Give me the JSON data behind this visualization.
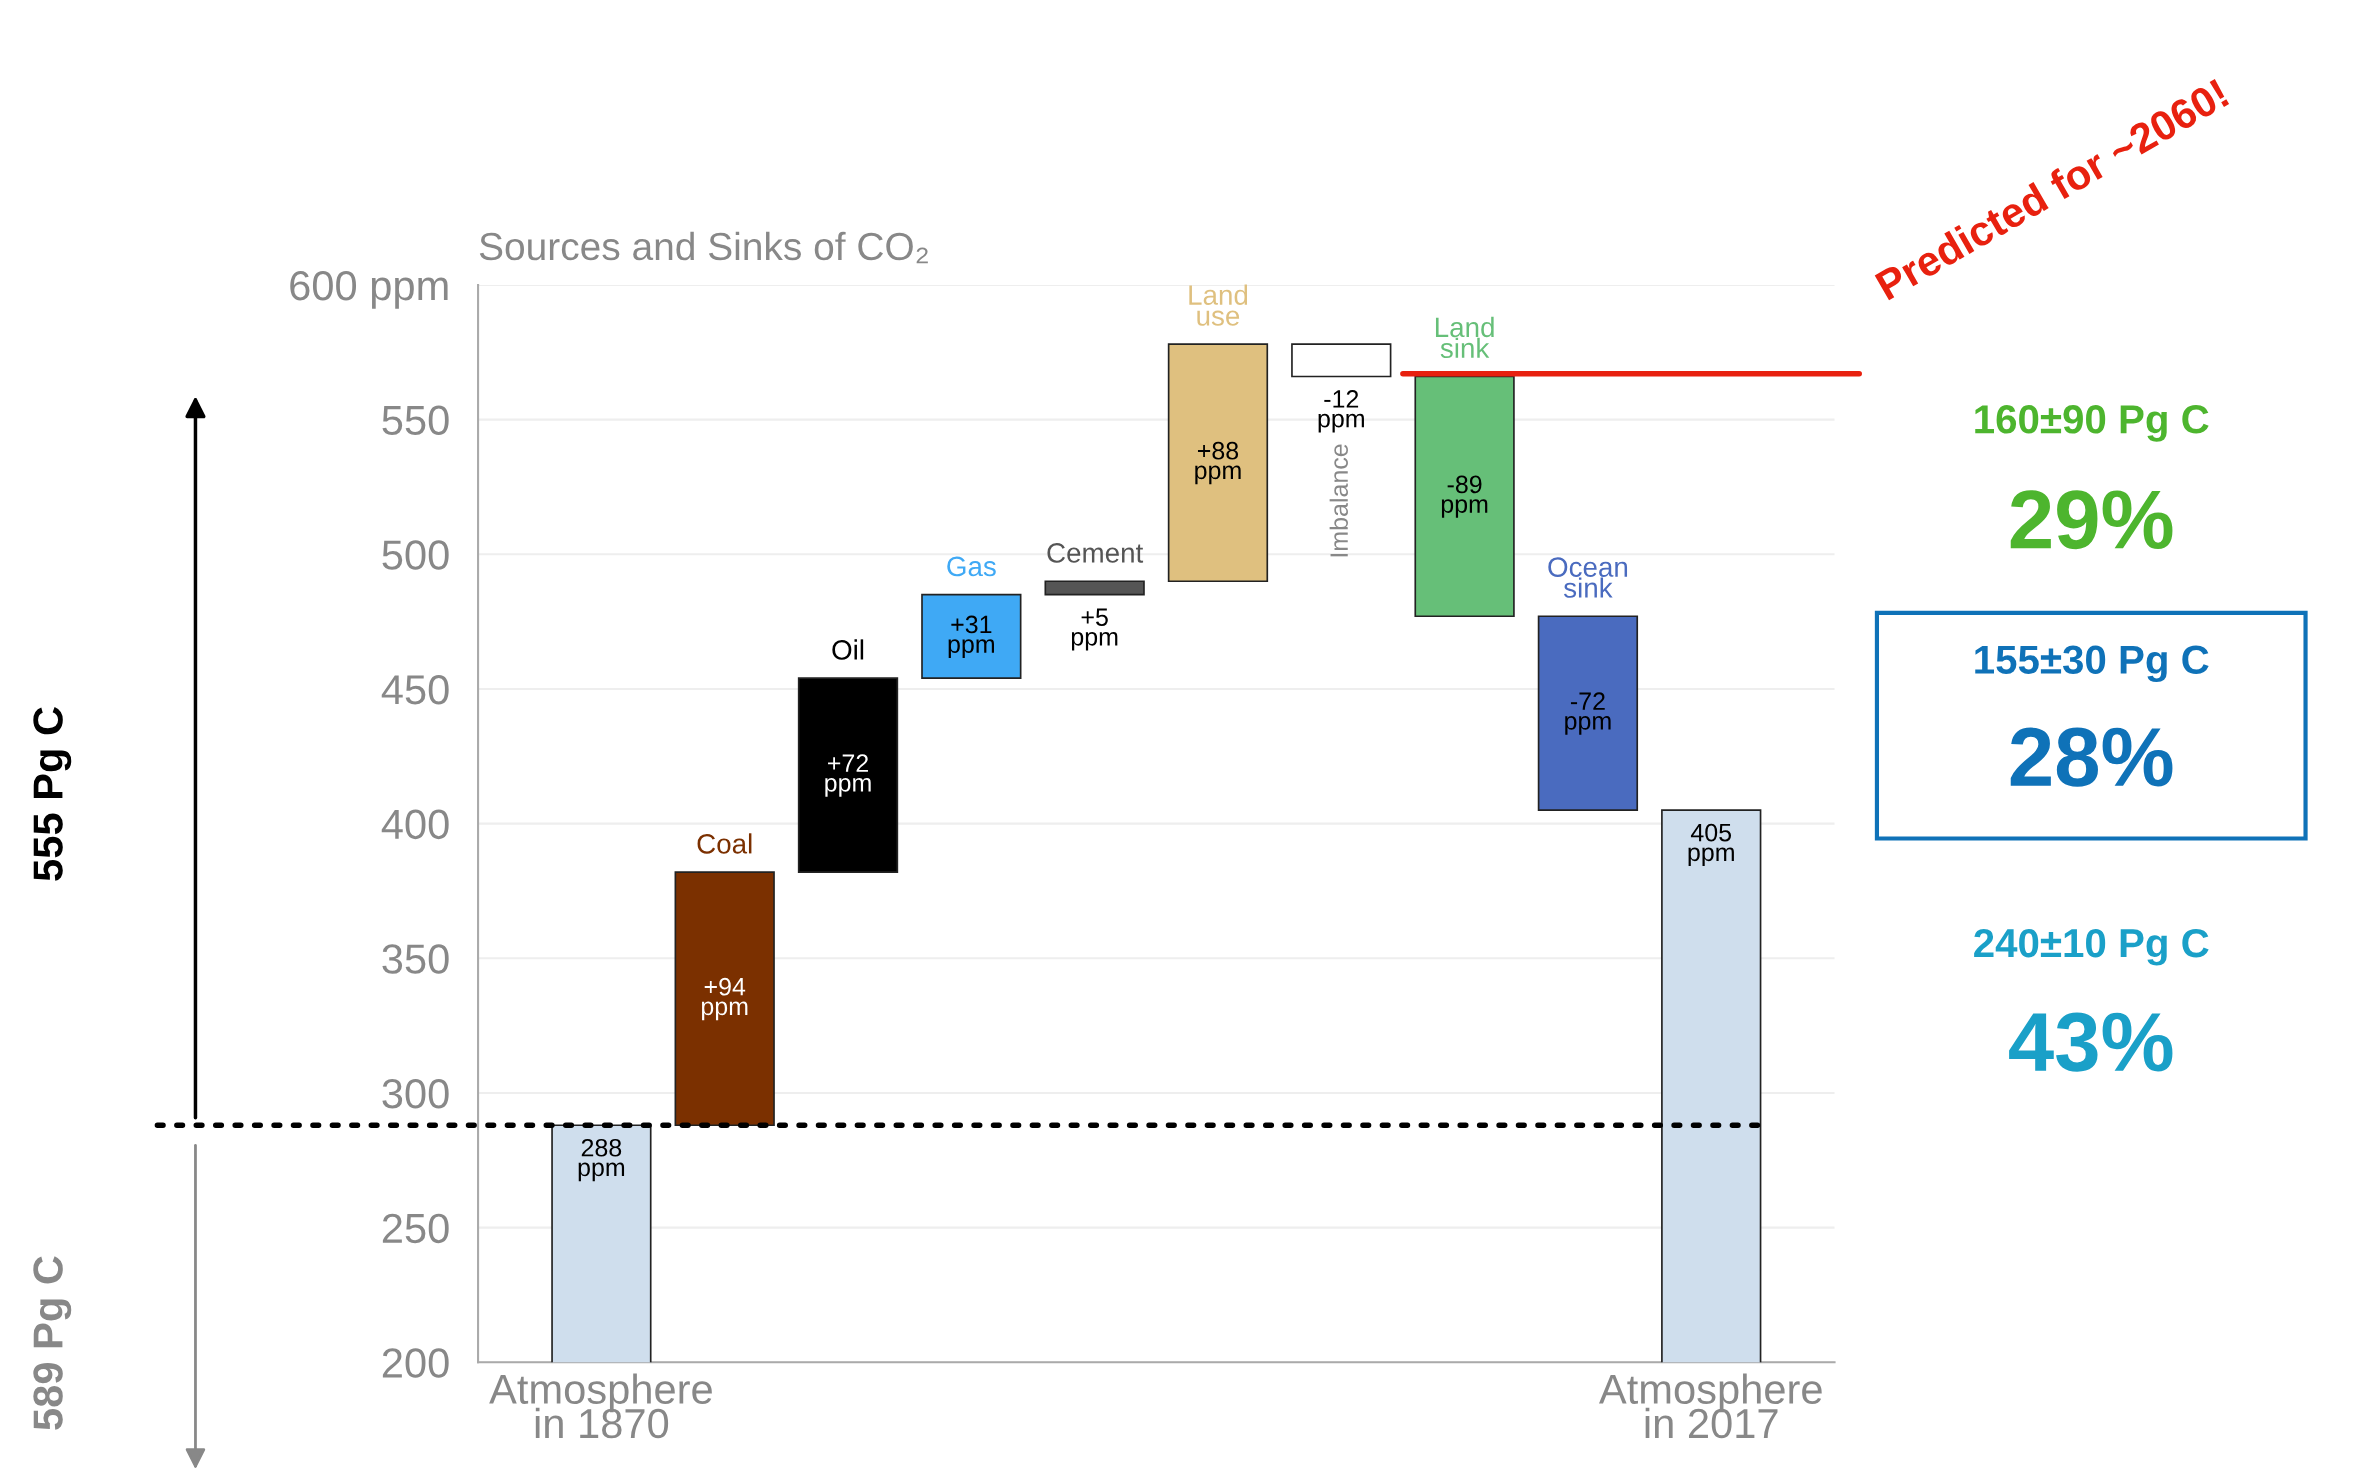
{
  "chart_data": {
    "type": "bar",
    "title": "Sources and Sinks of CO₂",
    "categories": [
      "Atmosphere in 1870",
      null,
      null,
      null,
      null,
      null,
      null,
      null,
      null,
      "Atmosphere in 2017"
    ],
    "series": [
      {
        "color": "#cfdeed",
        "values": [
          288,
          null,
          null,
          null,
          null,
          null,
          null,
          null,
          null,
          405
        ],
        "value_labels": [
          "288 ppm",
          null,
          null,
          null,
          null,
          null,
          null,
          null,
          null,
          "405 ppm"
        ]
      },
      {
        "name": "Coal",
        "color": "#7b3000",
        "base": [
          null,
          288,
          null,
          null,
          null,
          null,
          null,
          null,
          null,
          null
        ],
        "values": [
          null,
          94,
          null,
          null,
          null,
          null,
          null,
          null,
          null,
          null
        ],
        "value_labels": [
          null,
          "+94 ppm",
          null,
          null,
          null,
          null,
          null,
          null,
          null,
          null
        ]
      },
      {
        "name": "Oil",
        "color": "#000000",
        "base": [
          null,
          null,
          382,
          null,
          null,
          null,
          null,
          null,
          null,
          null
        ],
        "values": [
          null,
          null,
          72,
          null,
          null,
          null,
          null,
          null,
          null,
          null
        ],
        "value_labels": [
          null,
          null,
          "+72 ppm",
          null,
          null,
          null,
          null,
          null,
          null,
          null
        ]
      },
      {
        "name": "Gas",
        "color": "#3fa9f5",
        "base": [
          null,
          null,
          null,
          454,
          null,
          null,
          null,
          null,
          null,
          null
        ],
        "values": [
          null,
          null,
          null,
          31,
          null,
          null,
          null,
          null,
          null,
          null
        ],
        "value_labels": [
          null,
          null,
          null,
          "+31 ppm",
          null,
          null,
          null,
          null,
          null,
          null
        ]
      },
      {
        "name": "Cement",
        "color": "#555555",
        "base": [
          null,
          null,
          null,
          null,
          485,
          null,
          null,
          null,
          null,
          null
        ],
        "values": [
          null,
          null,
          null,
          null,
          5,
          null,
          null,
          null,
          null,
          null
        ],
        "value_labels": [
          null,
          null,
          null,
          null,
          "+5 ppm",
          null,
          null,
          null,
          null,
          null
        ]
      },
      {
        "name": "Land use",
        "color": "#dfc07f",
        "base": [
          null,
          null,
          null,
          null,
          null,
          490,
          null,
          null,
          null,
          null
        ],
        "values": [
          null,
          null,
          null,
          null,
          null,
          88,
          null,
          null,
          null,
          null
        ],
        "value_labels": [
          null,
          null,
          null,
          null,
          null,
          "+88 ppm",
          null,
          null,
          null,
          null
        ]
      },
      {
        "name": "Imbalance",
        "color": "#ffffff",
        "base": [
          null,
          null,
          null,
          null,
          null,
          null,
          578,
          null,
          null,
          null
        ],
        "values": [
          null,
          null,
          null,
          null,
          null,
          null,
          -12,
          null,
          null,
          null
        ],
        "value_labels": [
          null,
          null,
          null,
          null,
          null,
          null,
          "-12 ppm",
          null,
          null,
          null
        ]
      },
      {
        "name": "Land sink",
        "color": "#66bf78",
        "base": [
          null,
          null,
          null,
          null,
          null,
          null,
          null,
          566,
          null,
          null
        ],
        "values": [
          null,
          null,
          null,
          null,
          null,
          null,
          null,
          -89,
          null,
          null
        ],
        "value_labels": [
          null,
          null,
          null,
          null,
          null,
          null,
          null,
          "-89 ppm",
          null,
          null
        ]
      },
      {
        "name": "Ocean sink",
        "color": "#4a6bbf",
        "base": [
          null,
          null,
          null,
          null,
          null,
          null,
          null,
          null,
          477,
          null
        ],
        "values": [
          null,
          null,
          null,
          null,
          null,
          null,
          null,
          null,
          -72,
          null
        ],
        "value_labels": [
          null,
          null,
          null,
          null,
          null,
          null,
          null,
          null,
          "-72 ppm",
          null
        ]
      }
    ],
    "ylim": [
      200,
      600
    ],
    "yticks": [
      200,
      250,
      300,
      350,
      400,
      450,
      500,
      550,
      {
        "value": 600,
        "label": "600 ppm"
      }
    ],
    "grid": "y",
    "ref_lines": [
      {
        "axis": "y",
        "value": 288,
        "line_style": "dotted",
        "color": "#000000"
      },
      {
        "axis": "y",
        "value": 567,
        "label": "Predicted for ~2060!",
        "color": "#e8210f"
      }
    ],
    "annotations": [
      "555 Pg C",
      "589 Pg C",
      "160±90 Pg C",
      "29%",
      "155±30 Pg C",
      "28%",
      "240±10 Pg C",
      "43%"
    ]
  }
}
